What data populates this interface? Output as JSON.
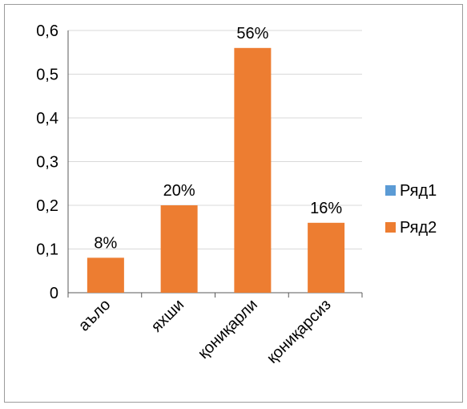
{
  "chart_data": {
    "type": "bar",
    "categories": [
      "аъло",
      "яхши",
      "қониқарли",
      "қониқарсиз"
    ],
    "series": [
      {
        "name": "Ряд1",
        "values": [
          0,
          0,
          0,
          0
        ],
        "color": "#5b9bd5"
      },
      {
        "name": "Ряд2",
        "values": [
          0.08,
          0.2,
          0.56,
          0.16
        ],
        "color": "#ed7d31"
      }
    ],
    "data_labels": [
      "8%",
      "20%",
      "56%",
      "16%"
    ],
    "y_ticks": [
      "0",
      "0,1",
      "0,2",
      "0,3",
      "0,4",
      "0,5",
      "0,6"
    ],
    "ylim": [
      0,
      0.6
    ],
    "grid": true,
    "legend_position": "right",
    "title": "",
    "xlabel": "",
    "ylabel": ""
  }
}
